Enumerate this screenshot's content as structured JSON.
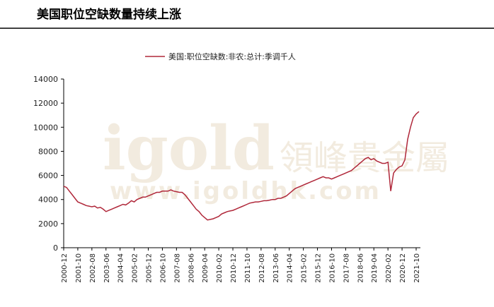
{
  "chart_data": {
    "type": "line",
    "title": "美国职位空缺数量持续上涨",
    "watermark": {
      "logo": "igold",
      "brand": "領峰貴金屬",
      "url": "www.igoldhk.com"
    },
    "categories": [
      "2000-12",
      null,
      null,
      null,
      null,
      "2001-10",
      null,
      null,
      null,
      null,
      "2002-08",
      null,
      null,
      null,
      null,
      "2003-06",
      null,
      null,
      null,
      null,
      "2004-04",
      null,
      null,
      null,
      null,
      "2005-02",
      null,
      null,
      null,
      null,
      "2005-12",
      null,
      null,
      null,
      null,
      "2006-10",
      null,
      null,
      null,
      null,
      "2007-08",
      null,
      null,
      null,
      null,
      "2008-06",
      null,
      null,
      null,
      null,
      "2009-04",
      null,
      null,
      null,
      null,
      "2010-02",
      null,
      null,
      null,
      null,
      "2010-12",
      null,
      null,
      null,
      null,
      "2011-10",
      null,
      null,
      null,
      null,
      "2012-08",
      null,
      null,
      null,
      null,
      "2013-06",
      null,
      null,
      null,
      null,
      "2014-04",
      null,
      null,
      null,
      null,
      "2015-02",
      null,
      null,
      null,
      null,
      "2015-12",
      null,
      null,
      null,
      null,
      "2016-10",
      null,
      null,
      null,
      null,
      "2017-08",
      null,
      null,
      null,
      null,
      "2018-06",
      null,
      null,
      null,
      null,
      "2019-04",
      null,
      null,
      null,
      null,
      "2020-02",
      null,
      null,
      null,
      null,
      "2020-12",
      null,
      null,
      null,
      null,
      "2021-10",
      null
    ],
    "series": [
      {
        "name": "美国:职位空缺数:非农:总计:季调千人",
        "color": "#b0283a",
        "values": [
          5100,
          5000,
          4700,
          4400,
          4100,
          3800,
          3700,
          3600,
          3500,
          3450,
          3400,
          3450,
          3300,
          3350,
          3200,
          3000,
          3100,
          3200,
          3300,
          3400,
          3500,
          3600,
          3550,
          3700,
          3900,
          3800,
          4000,
          4100,
          4200,
          4200,
          4300,
          4400,
          4500,
          4600,
          4600,
          4700,
          4700,
          4700,
          4800,
          4700,
          4650,
          4600,
          4600,
          4400,
          4100,
          3800,
          3500,
          3200,
          3000,
          2700,
          2500,
          2300,
          2350,
          2400,
          2500,
          2600,
          2800,
          2900,
          3000,
          3050,
          3100,
          3200,
          3300,
          3400,
          3500,
          3600,
          3700,
          3750,
          3800,
          3800,
          3850,
          3900,
          3900,
          3950,
          4000,
          4000,
          4100,
          4100,
          4200,
          4300,
          4500,
          4700,
          4900,
          5000,
          5100,
          5200,
          5300,
          5400,
          5500,
          5600,
          5700,
          5800,
          5900,
          5800,
          5800,
          5700,
          5800,
          5900,
          6000,
          6100,
          6200,
          6300,
          6400,
          6600,
          6800,
          7000,
          7200,
          7400,
          7500,
          7300,
          7400,
          7200,
          7100,
          7000,
          7000,
          7100,
          4700,
          6200,
          6500,
          6700,
          6800,
          7300,
          9000,
          10000,
          10800,
          11100,
          11300
        ]
      }
    ],
    "ylim": [
      0,
      14000
    ],
    "yticks": [
      0,
      2000,
      4000,
      6000,
      8000,
      10000,
      12000,
      14000
    ],
    "grid": false,
    "legend": "top"
  }
}
